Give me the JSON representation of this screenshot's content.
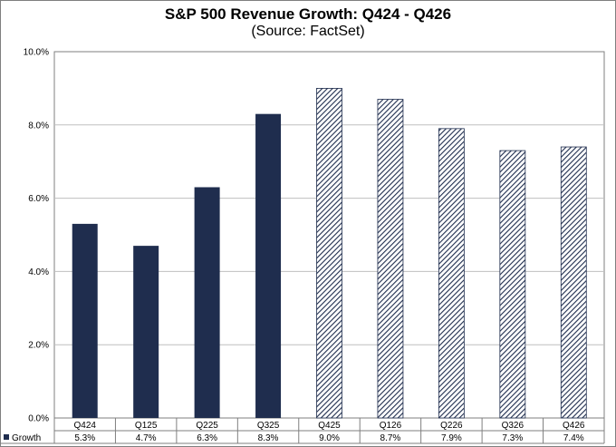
{
  "chart_data": {
    "type": "bar",
    "title": "S&P 500 Revenue Growth: Q424 - Q426",
    "subtitle": "(Source: FactSet)",
    "categories": [
      "Q424",
      "Q125",
      "Q225",
      "Q325",
      "Q425",
      "Q126",
      "Q226",
      "Q326",
      "Q426"
    ],
    "series": [
      {
        "name": "Growth",
        "values": [
          5.3,
          4.7,
          6.3,
          8.3,
          9.0,
          8.7,
          7.9,
          7.3,
          7.4
        ],
        "value_labels": [
          "5.3%",
          "4.7%",
          "6.3%",
          "8.3%",
          "9.0%",
          "8.7%",
          "7.9%",
          "7.3%",
          "7.4%"
        ],
        "fill": [
          "solid",
          "solid",
          "solid",
          "solid",
          "hatched",
          "hatched",
          "hatched",
          "hatched",
          "hatched"
        ]
      }
    ],
    "y_ticks": [
      "0.0%",
      "2.0%",
      "4.0%",
      "6.0%",
      "8.0%",
      "10.0%"
    ],
    "ylim": [
      0,
      10
    ],
    "grid": true,
    "data_table": true,
    "colors": {
      "bar": "#1f2d4e",
      "hatch": "#1f2d4e",
      "grid": "#bfbfbf",
      "axis": "#7f7f7f"
    }
  }
}
